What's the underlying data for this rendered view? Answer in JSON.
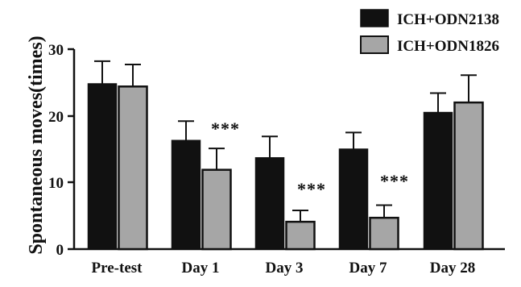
{
  "chart_data": {
    "type": "bar",
    "title": "",
    "xlabel": "",
    "ylabel": "Spontaneous moves(times)",
    "ylim": [
      0,
      30
    ],
    "yticks": [
      "0",
      "10",
      "20",
      "30"
    ],
    "categories": [
      "Pre-test",
      "Day 1",
      "Day 3",
      "Day 7",
      "Day 28"
    ],
    "series": [
      {
        "name": "ICH+ODN2138",
        "color": "#111111",
        "values": [
          24.8,
          16.3,
          13.7,
          15.0,
          20.5
        ],
        "errors": [
          3.4,
          2.9,
          3.2,
          2.5,
          2.9
        ]
      },
      {
        "name": "ICH+ODN1826",
        "color": "#a6a6a6",
        "values": [
          24.4,
          11.9,
          4.1,
          4.7,
          22.0
        ],
        "errors": [
          3.3,
          3.2,
          1.7,
          1.9,
          4.1
        ]
      }
    ],
    "annotations": [
      "***",
      "***",
      "***"
    ],
    "grid": false,
    "legend_position": "top-right"
  }
}
